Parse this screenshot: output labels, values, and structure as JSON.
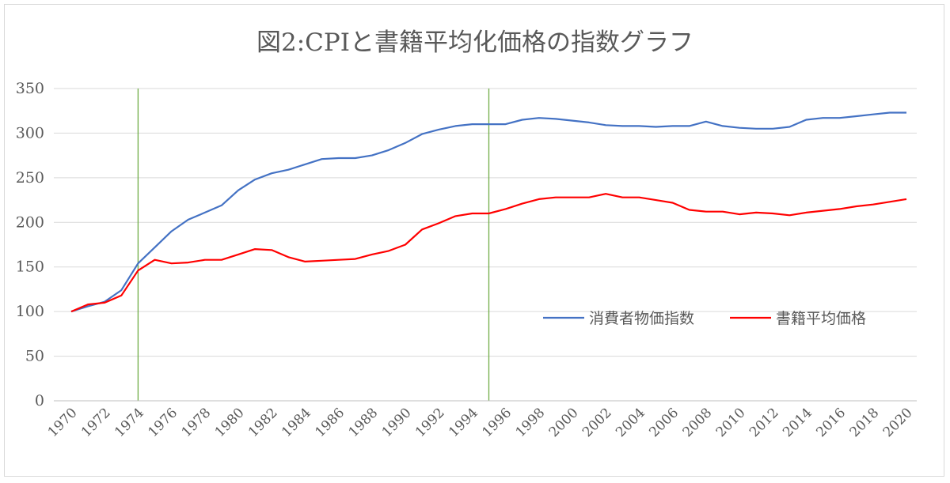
{
  "chart_data": {
    "type": "line",
    "title": "図2:CPIと書籍平均化価格の指数グラフ",
    "xlabel": "",
    "ylabel": "",
    "x": [
      1970,
      1971,
      1972,
      1973,
      1974,
      1975,
      1976,
      1977,
      1978,
      1979,
      1980,
      1981,
      1982,
      1983,
      1984,
      1985,
      1986,
      1987,
      1988,
      1989,
      1990,
      1991,
      1992,
      1993,
      1994,
      1995,
      1996,
      1997,
      1998,
      1999,
      2000,
      2001,
      2002,
      2003,
      2004,
      2005,
      2006,
      2007,
      2008,
      2009,
      2010,
      2011,
      2012,
      2013,
      2014,
      2015,
      2016,
      2017,
      2018,
      2019,
      2020
    ],
    "x_tick_labels": [
      "1970",
      "1972",
      "1974",
      "1976",
      "1978",
      "1980",
      "1982",
      "1984",
      "1986",
      "1988",
      "1990",
      "1992",
      "1994",
      "1996",
      "1998",
      "2000",
      "2002",
      "2004",
      "2006",
      "2008",
      "2010",
      "2012",
      "2014",
      "2016",
      "2018",
      "2020"
    ],
    "ylim": [
      0,
      350
    ],
    "y_ticks": [
      0,
      50,
      100,
      150,
      200,
      250,
      300,
      350
    ],
    "grid": true,
    "legend_position": "right",
    "vertical_markers": [
      1974,
      1995
    ],
    "series": [
      {
        "name": "消費者物価指数",
        "color": "#4472C4",
        "values": [
          100,
          106,
          111,
          124,
          154,
          172,
          190,
          203,
          211,
          219,
          236,
          248,
          255,
          259,
          265,
          271,
          272,
          272,
          275,
          281,
          289,
          299,
          304,
          308,
          310,
          310,
          310,
          315,
          317,
          316,
          314,
          312,
          309,
          308,
          308,
          307,
          308,
          308,
          313,
          308,
          306,
          305,
          305,
          307,
          315,
          317,
          317,
          319,
          321,
          323,
          323
        ]
      },
      {
        "name": "書籍平均価格",
        "color": "#FF0000",
        "values": [
          100,
          108,
          110,
          118,
          146,
          158,
          154,
          155,
          158,
          158,
          164,
          170,
          169,
          161,
          156,
          157,
          158,
          159,
          164,
          168,
          175,
          192,
          199,
          207,
          210,
          210,
          215,
          221,
          226,
          228,
          228,
          228,
          232,
          228,
          228,
          225,
          222,
          214,
          212,
          212,
          209,
          211,
          210,
          208,
          211,
          213,
          215,
          218,
          220,
          223,
          226
        ]
      }
    ]
  }
}
